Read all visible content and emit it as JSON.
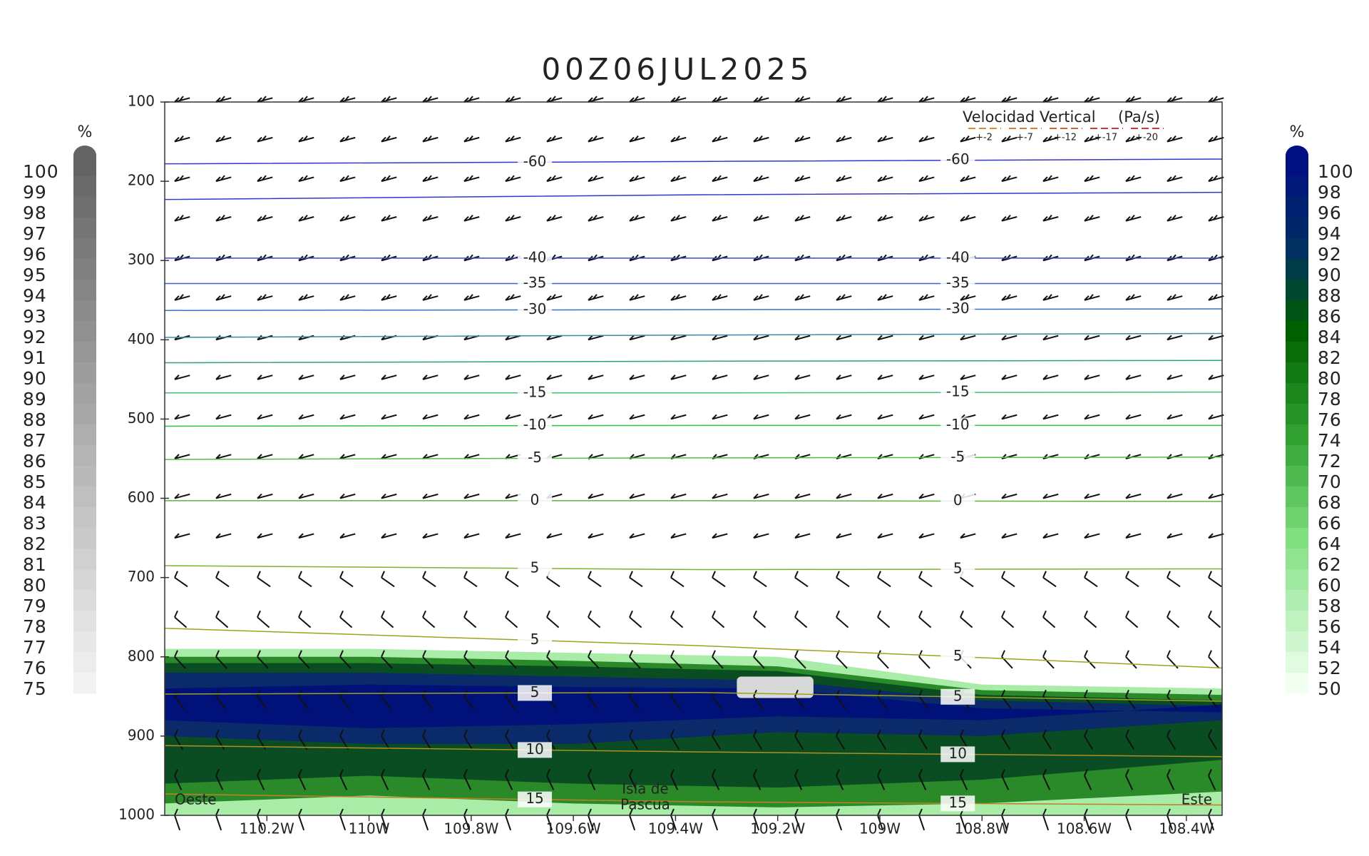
{
  "chart_data": {
    "type": "cross-section",
    "title": "00Z06JUL2025",
    "xlim": [
      -110.4,
      -108.33
    ],
    "ylim": [
      1000,
      100
    ],
    "yticks": [
      100,
      200,
      300,
      400,
      500,
      600,
      700,
      800,
      900,
      1000
    ],
    "xticks": [
      {
        "value": -110.2,
        "label": "110.2W"
      },
      {
        "value": -110.0,
        "label": "110W"
      },
      {
        "value": -109.8,
        "label": "109.8W"
      },
      {
        "value": -109.6,
        "label": "109.6W"
      },
      {
        "value": -109.4,
        "label": "109.4W"
      },
      {
        "value": -109.2,
        "label": "109.2W"
      },
      {
        "value": -109.0,
        "label": "109W"
      },
      {
        "value": -108.8,
        "label": "108.8W"
      },
      {
        "value": -108.6,
        "label": "108.6W"
      },
      {
        "value": -108.4,
        "label": "108.4W"
      }
    ],
    "contour_x": [
      -110.4,
      -109.35,
      -108.33
    ],
    "contours": [
      {
        "value": -60,
        "color": "#3535d0",
        "p": [
          178,
          175,
          172
        ]
      },
      {
        "value": null,
        "color": "#3535d0",
        "p": [
          223,
          217,
          214
        ]
      },
      {
        "value": -40,
        "color": "#3a4ad0",
        "p": [
          297,
          297,
          297
        ]
      },
      {
        "value": -35,
        "color": "#4060c8",
        "p": [
          329,
          329,
          329
        ]
      },
      {
        "value": -30,
        "color": "#3a70c0",
        "p": [
          363,
          362,
          361
        ]
      },
      {
        "value": null,
        "color": "#3a8aa0",
        "p": [
          397,
          394,
          392
        ]
      },
      {
        "value": null,
        "color": "#30a080",
        "p": [
          429,
          427,
          426
        ]
      },
      {
        "value": -15,
        "color": "#40c070",
        "p": [
          467,
          467,
          466
        ]
      },
      {
        "value": -10,
        "color": "#30c040",
        "p": [
          509,
          508,
          508
        ]
      },
      {
        "value": -5,
        "color": "#50c040",
        "p": [
          551,
          549,
          548
        ]
      },
      {
        "value": 0,
        "color": "#60b040",
        "p": [
          603,
          603,
          604
        ]
      },
      {
        "value": 5,
        "color": "#80b030",
        "p": [
          685,
          690,
          689
        ]
      },
      {
        "value": 5,
        "color": "#a0a020",
        "p": [
          764,
          786,
          814
        ]
      },
      {
        "value": 5,
        "color": "#a0a020",
        "p": [
          847,
          845,
          856
        ]
      },
      {
        "value": 10,
        "color": "#b09020",
        "p": [
          912,
          920,
          926
        ]
      },
      {
        "value": 15,
        "color": "#c08020",
        "p": [
          973,
          983,
          987
        ]
      }
    ],
    "rh_x": [
      -110.4,
      -110.0,
      -109.6,
      -109.2,
      -108.8,
      -108.33
    ],
    "rh_bands": [
      {
        "level": 60,
        "color": "#a8eca8",
        "top": [
          790,
          790,
          795,
          800,
          835,
          840
        ],
        "bottom": [
          1000,
          1000,
          1000,
          1000,
          1000,
          1000
        ]
      },
      {
        "level": 80,
        "color": "#2a8a2a",
        "top": [
          800,
          800,
          805,
          812,
          842,
          848
        ],
        "bottom": [
          985,
          975,
          985,
          990,
          985,
          970
        ]
      },
      {
        "level": 90,
        "color": "#0b4d22",
        "top": [
          808,
          808,
          812,
          818,
          848,
          855
        ],
        "bottom": [
          960,
          950,
          960,
          965,
          955,
          930
        ]
      },
      {
        "level": 96,
        "color": "#0a2a6a",
        "top": [
          820,
          820,
          825,
          830,
          855,
          862
        ],
        "bottom": [
          900,
          910,
          910,
          895,
          900,
          880
        ]
      },
      {
        "level": 100,
        "color": "#00127a",
        "top": [
          840,
          835,
          838,
          840,
          865,
          870
        ],
        "bottom": [
          880,
          890,
          885,
          875,
          880,
          860
        ]
      }
    ],
    "gray_patch": {
      "x": [
        -109.28,
        -109.13
      ],
      "p": [
        825,
        852
      ],
      "color": "#d8d8d8"
    },
    "left_colorbar": {
      "unit": "%",
      "labels": [
        100,
        99,
        98,
        97,
        96,
        95,
        94,
        93,
        92,
        91,
        90,
        89,
        88,
        87,
        86,
        85,
        84,
        83,
        82,
        81,
        80,
        79,
        78,
        77,
        76,
        75
      ]
    },
    "right_colorbar": {
      "unit": "%",
      "labels": [
        100,
        98,
        96,
        94,
        92,
        90,
        88,
        86,
        84,
        82,
        80,
        78,
        76,
        74,
        72,
        70,
        68,
        66,
        64,
        62,
        60,
        58,
        56,
        54,
        52,
        50
      ]
    },
    "legend": {
      "title": "Velocidad Vertical",
      "unit": "(Pa/s)",
      "entries": [
        {
          "label": "+-2",
          "color": "#e08a30"
        },
        {
          "label": "+-7",
          "color": "#e07a30"
        },
        {
          "label": "+-12",
          "color": "#d86030"
        },
        {
          "label": "+-17",
          "color": "#c83a30"
        },
        {
          "label": "+-20",
          "color": "#e03030"
        }
      ]
    },
    "annotations": {
      "west": "Oeste",
      "east": "Este",
      "island_1": "Isla de",
      "island_2": "Pascua"
    }
  }
}
